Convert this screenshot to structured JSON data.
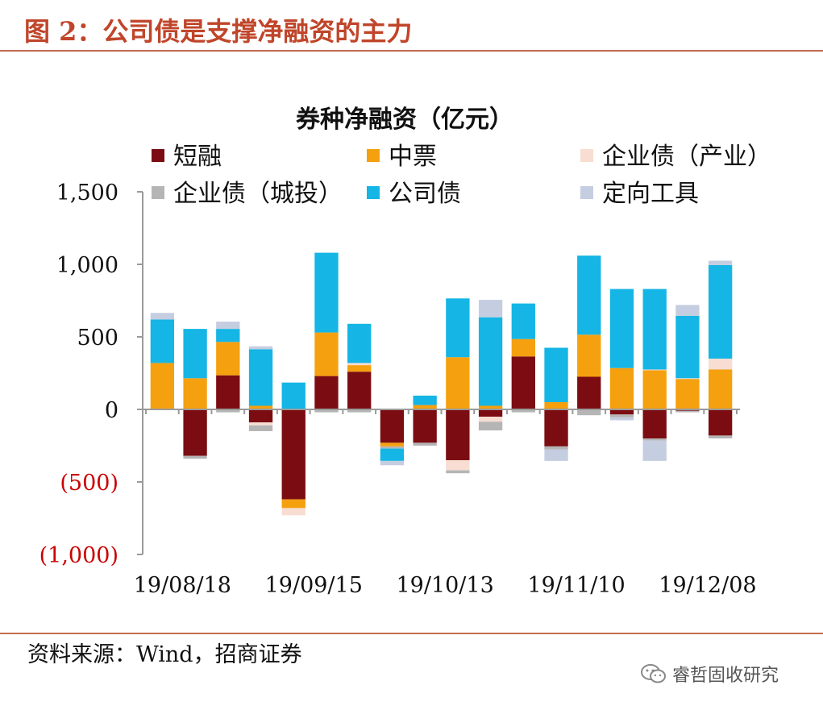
{
  "figure": {
    "title": "图 2：公司债是支撑净融资的主力",
    "source": "资料来源：Wind，招商证券",
    "watermark": "睿哲固收研究"
  },
  "colors": {
    "accent": "#c0452a",
    "negative_tick": "#cc0000"
  },
  "chart_data": {
    "type": "bar",
    "stacked": true,
    "title": "券种净融资（亿元）",
    "xlabel": "",
    "ylabel": "",
    "ylim": [
      -1000,
      1500
    ],
    "yticks": [
      {
        "value": 1500,
        "label": "1,500"
      },
      {
        "value": 1000,
        "label": "1,000"
      },
      {
        "value": 500,
        "label": "500"
      },
      {
        "value": 0,
        "label": "0"
      },
      {
        "value": -500,
        "label": "(500)"
      },
      {
        "value": -1000,
        "label": "(1,000)"
      }
    ],
    "xtick_labels": [
      {
        "index": 0,
        "label": "19/08/18"
      },
      {
        "index": 4,
        "label": "19/09/15"
      },
      {
        "index": 8,
        "label": "19/10/13"
      },
      {
        "index": 12,
        "label": "19/11/10"
      },
      {
        "index": 16,
        "label": "19/12/08"
      }
    ],
    "n_periods": 18,
    "grid": false,
    "legend_position": "top",
    "series": [
      {
        "name": "短融",
        "color": "#7b0d12",
        "values": [
          0,
          -320,
          235,
          -90,
          -620,
          230,
          260,
          -230,
          -230,
          -350,
          -50,
          365,
          -255,
          225,
          -35,
          -200,
          -10,
          -180
        ]
      },
      {
        "name": "中票",
        "color": "#f5a00f",
        "values": [
          320,
          215,
          230,
          25,
          -60,
          300,
          45,
          -25,
          30,
          360,
          25,
          120,
          50,
          290,
          285,
          270,
          210,
          275
        ]
      },
      {
        "name": "企业债（产业）",
        "color": "#f7ddd2",
        "values": [
          0,
          0,
          0,
          -20,
          -50,
          0,
          15,
          0,
          0,
          -70,
          -35,
          0,
          0,
          0,
          0,
          5,
          5,
          75
        ]
      },
      {
        "name": "企业债（城投）",
        "color": "#b5b5b5",
        "values": [
          0,
          -20,
          -20,
          -40,
          0,
          -20,
          -20,
          -15,
          -20,
          -20,
          -60,
          -20,
          -20,
          -40,
          -20,
          -15,
          -10,
          -20
        ]
      },
      {
        "name": "公司债",
        "color": "#15b5e5",
        "values": [
          300,
          340,
          90,
          390,
          185,
          550,
          270,
          -85,
          65,
          405,
          610,
          245,
          375,
          545,
          545,
          555,
          430,
          645
        ]
      },
      {
        "name": "定向工具",
        "color": "#c5cde0",
        "values": [
          45,
          0,
          50,
          20,
          0,
          0,
          0,
          -30,
          0,
          0,
          120,
          0,
          -80,
          0,
          -20,
          -140,
          75,
          30
        ]
      }
    ]
  }
}
